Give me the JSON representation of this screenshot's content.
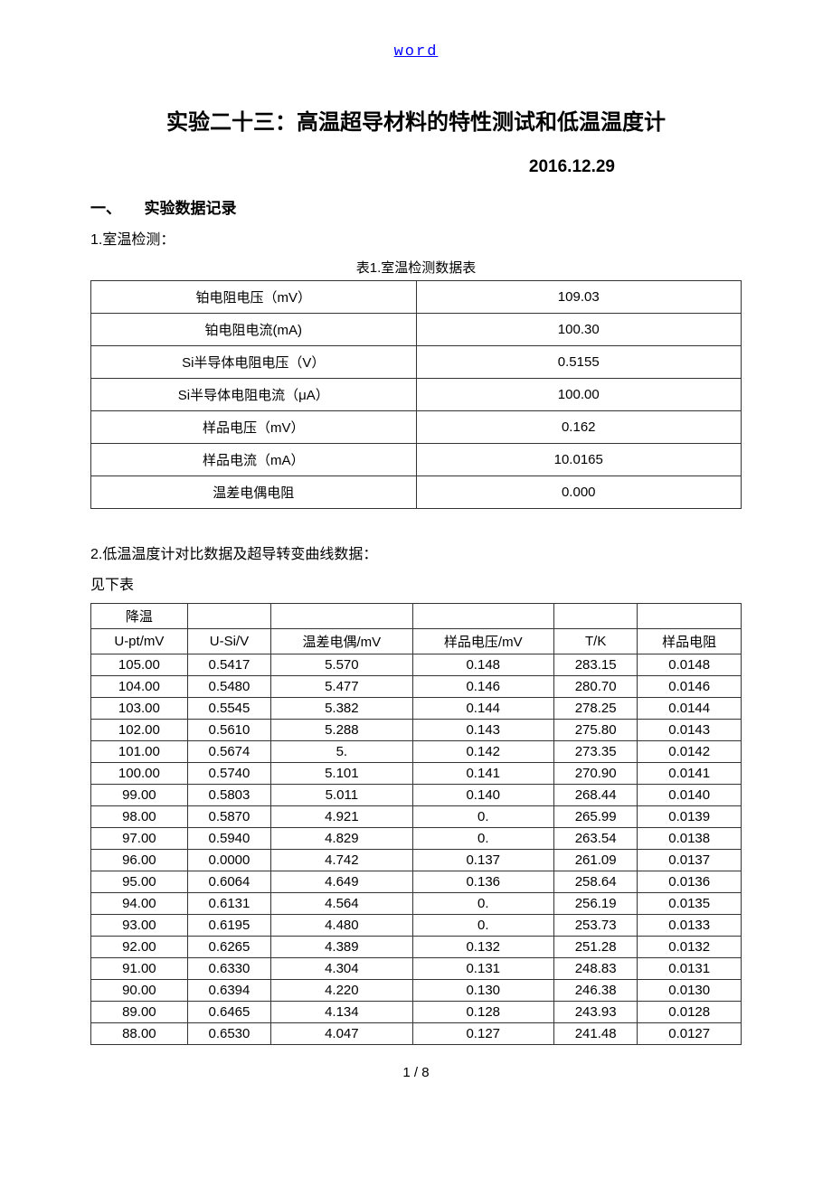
{
  "header_link": "word",
  "title": "实验二十三：高温超导材料的特性测试和低温温度计",
  "date": "2016.12.29",
  "section1_heading": "一、　　实验数据记录",
  "sub1": "1.室温检测：",
  "table1_caption": "表1.室温检测数据表",
  "table1_rows": [
    {
      "label": "铂电阻电压（mV）",
      "value": "109.03"
    },
    {
      "label": "铂电阻电流(mA)",
      "value": "100.30"
    },
    {
      "label": "Si半导体电阻电压（V）",
      "value": "0.5155"
    },
    {
      "label": "Si半导体电阻电流（μA）",
      "value": "100.00"
    },
    {
      "label": "样品电压（mV）",
      "value": "0.162"
    },
    {
      "label": "样品电流（mA）",
      "value": "10.0165"
    },
    {
      "label": "温差电偶电阻",
      "value": "0.000"
    }
  ],
  "sub2": "2.低温温度计对比数据及超导转变曲线数据：",
  "sub2_note": "见下表",
  "table2_header_top": "降温",
  "table2_columns": [
    "U-pt/mV",
    "U-Si/V",
    "温差电偶/mV",
    "样品电压/mV",
    "T/K",
    "样品电阻"
  ],
  "table2_rows": [
    [
      "105.00",
      "0.5417",
      "5.570",
      "0.148",
      "283.15",
      "0.0148"
    ],
    [
      "104.00",
      "0.5480",
      "5.477",
      "0.146",
      "280.70",
      "0.0146"
    ],
    [
      "103.00",
      "0.5545",
      "5.382",
      "0.144",
      "278.25",
      "0.0144"
    ],
    [
      "102.00",
      "0.5610",
      "5.288",
      "0.143",
      "275.80",
      "0.0143"
    ],
    [
      "101.00",
      "0.5674",
      "5.",
      "0.142",
      "273.35",
      "0.0142"
    ],
    [
      "100.00",
      "0.5740",
      "5.101",
      "0.141",
      "270.90",
      "0.0141"
    ],
    [
      "99.00",
      "0.5803",
      "5.011",
      "0.140",
      "268.44",
      "0.0140"
    ],
    [
      "98.00",
      "0.5870",
      "4.921",
      "0.",
      "265.99",
      "0.0139"
    ],
    [
      "97.00",
      "0.5940",
      "4.829",
      "0.",
      "263.54",
      "0.0138"
    ],
    [
      "96.00",
      "0.0000",
      "4.742",
      "0.137",
      "261.09",
      "0.0137"
    ],
    [
      "95.00",
      "0.6064",
      "4.649",
      "0.136",
      "258.64",
      "0.0136"
    ],
    [
      "94.00",
      "0.6131",
      "4.564",
      "0.",
      "256.19",
      "0.0135"
    ],
    [
      "93.00",
      "0.6195",
      "4.480",
      "0.",
      "253.73",
      "0.0133"
    ],
    [
      "92.00",
      "0.6265",
      "4.389",
      "0.132",
      "251.28",
      "0.0132"
    ],
    [
      "91.00",
      "0.6330",
      "4.304",
      "0.131",
      "248.83",
      "0.0131"
    ],
    [
      "90.00",
      "0.6394",
      "4.220",
      "0.130",
      "246.38",
      "0.0130"
    ],
    [
      "89.00",
      "0.6465",
      "4.134",
      "0.128",
      "243.93",
      "0.0128"
    ],
    [
      "88.00",
      "0.6530",
      "4.047",
      "0.127",
      "241.48",
      "0.0127"
    ]
  ],
  "footer": "1 / 8"
}
